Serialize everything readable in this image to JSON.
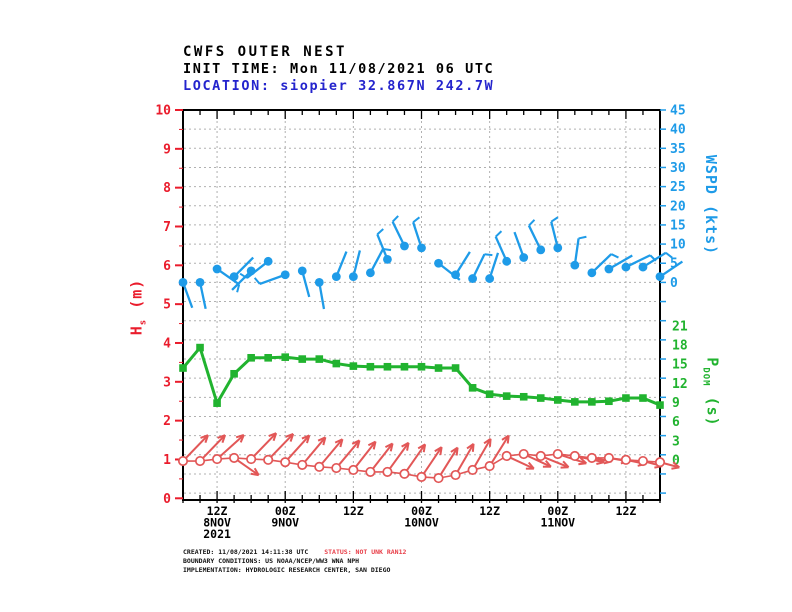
{
  "header": {
    "title": "CWFS OUTER NEST",
    "init_time": "INIT TIME: Mon 11/08/2021 06 UTC",
    "location": "LOCATION: siopier 32.867N 242.7W"
  },
  "axes": {
    "left": {
      "letter": "H",
      "sub": "s",
      "unit": " (m)",
      "color": "#ea1c2c",
      "ticks": [
        10,
        9,
        8,
        7,
        6,
        5,
        4,
        3,
        2,
        1,
        0
      ]
    },
    "right_top": {
      "label": "WSPD (kts)",
      "color": "#1e9be8",
      "ticks": [
        45,
        40,
        35,
        30,
        25,
        20,
        15,
        10,
        5,
        0
      ]
    },
    "right_bottom": {
      "letter": "P",
      "sub": "DOM",
      "unit": " (s)",
      "color": "#21b32f",
      "ticks": [
        21,
        18,
        15,
        12,
        9,
        6,
        3,
        0
      ]
    }
  },
  "x_axis": {
    "labels": [
      {
        "i": 2,
        "lines": [
          "12Z",
          "8NOV",
          "2021"
        ]
      },
      {
        "i": 6,
        "lines": [
          "00Z",
          "9NOV"
        ]
      },
      {
        "i": 10,
        "lines": [
          "12Z"
        ]
      },
      {
        "i": 14,
        "lines": [
          "00Z",
          "10NOV"
        ]
      },
      {
        "i": 18,
        "lines": [
          "12Z"
        ]
      },
      {
        "i": 22,
        "lines": [
          "00Z",
          "11NOV"
        ]
      },
      {
        "i": 26,
        "lines": [
          "12Z"
        ]
      }
    ]
  },
  "chart_data": {
    "type": "line",
    "title": "CWFS OUTER NEST",
    "x_start": "Mon 11/08/2021 06 UTC",
    "x_step_hours": 3,
    "n_points": 29,
    "grid": true,
    "left_axis": {
      "label": "Hs (m)",
      "range": [
        0,
        10
      ]
    },
    "right_axis_top": {
      "label": "WSPD (kts)",
      "range": [
        0,
        45
      ]
    },
    "right_axis_bottom": {
      "label": "PDOM (s)",
      "range": [
        0,
        21
      ]
    },
    "series": [
      {
        "name": "WSPD",
        "unit": "kts",
        "style": "windbarb-dots",
        "color": "#1e9be8",
        "axis": "wspd",
        "values": [
          0,
          0,
          3.5,
          1.5,
          3,
          5.5,
          2,
          3,
          0,
          1.5,
          1.5,
          2.5,
          6,
          9.5,
          9,
          5,
          2,
          1,
          1,
          5.5,
          6.5,
          8.5,
          9,
          4.5,
          2.5,
          3.5,
          4,
          4,
          1.5
        ],
        "barb_angles_deg": [
          -70,
          -78,
          -35,
          45,
          -135,
          -142,
          -160,
          -75,
          -80,
          68,
          76,
          62,
          112,
          116,
          108,
          -38,
          58,
          64,
          72,
          114,
          110,
          116,
          104,
          82,
          44,
          30,
          26,
          32,
          34
        ],
        "barb_ticks": [
          false,
          false,
          true,
          false,
          false,
          true,
          true,
          false,
          false,
          false,
          false,
          true,
          true,
          true,
          true,
          false,
          false,
          true,
          false,
          true,
          false,
          true,
          true,
          true,
          true,
          false,
          true,
          true,
          false
        ]
      },
      {
        "name": "PDOM",
        "unit": "s",
        "style": "line-squares",
        "color": "#21b32f",
        "axis": "pdom",
        "values": [
          14.4,
          17.6,
          8.9,
          13.5,
          16,
          16,
          16.1,
          15.8,
          15.8,
          15.1,
          14.7,
          14.6,
          14.6,
          14.6,
          14.6,
          14.4,
          14.4,
          11.3,
          10.3,
          10,
          9.9,
          9.7,
          9.4,
          9.1,
          9.1,
          9.2,
          9.7,
          9.7,
          8.6
        ]
      },
      {
        "name": "HS",
        "unit": "m",
        "style": "line-circles-arrows",
        "color": "#e25757",
        "axis": "hs",
        "values": [
          0.96,
          0.96,
          1.01,
          1.04,
          1.01,
          0.99,
          0.93,
          0.86,
          0.81,
          0.78,
          0.73,
          0.68,
          0.68,
          0.63,
          0.55,
          0.52,
          0.6,
          0.73,
          0.83,
          1.09,
          1.14,
          1.09,
          1.14,
          1.09,
          1.04,
          1.04,
          0.99,
          0.96,
          0.93
        ],
        "arrow_angles_deg": [
          46,
          46,
          42,
          -35,
          46,
          46,
          48,
          50,
          50,
          50,
          52,
          52,
          54,
          55,
          56,
          58,
          60,
          60,
          58,
          -25,
          -25,
          -22,
          -18,
          -12,
          -10,
          -10,
          -12,
          -15,
          -15
        ]
      }
    ]
  },
  "footer": {
    "created": "CREATED: 11/08/2021 14:11:38 UTC",
    "status": "STATUS: NOT UNK RAN12",
    "boundary": "BOUNDARY CONDITIONS: US NOAA/NCEP/WW3 WNA NPH",
    "implementation": "IMPLEMENTATION: HYDROLOGIC RESEARCH CENTER, SAN DIEGO"
  },
  "colors": {
    "hs_axis": "#ea1c2c",
    "wspd": "#1e9be8",
    "pdom": "#21b32f",
    "hs_series": "#e25757",
    "location_text": "#2424cd",
    "grid": "#b0b0b0",
    "frame": "#000000"
  }
}
